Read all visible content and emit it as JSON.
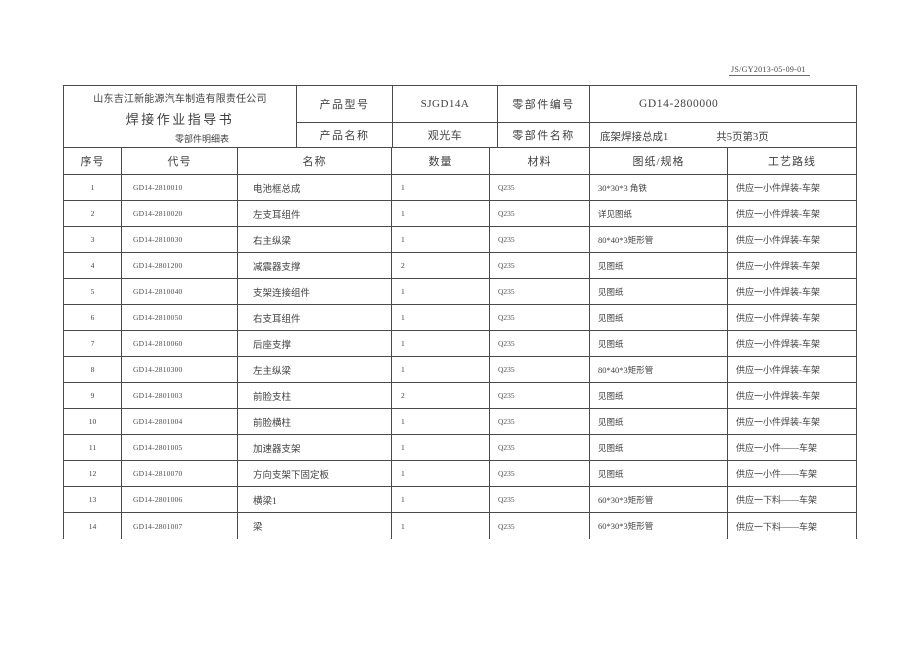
{
  "colors": {
    "page_bg": "#ffffff",
    "ink": "#3f3f3f",
    "border": "#4a4a4a"
  },
  "stamp": "JS/GY2013-05-09-01",
  "header": {
    "company": "山东吉江新能源汽车制造有限责任公司",
    "doc_title": "焊接作业指导书",
    "subtitle": "零部件明细表",
    "product_model_label": "产品型号",
    "product_model": "SJGD14A",
    "product_name_label": "产品名称",
    "product_name": "观光车",
    "part_number_label": "零部件编号",
    "part_number": "GD14-2800000",
    "part_name_label": "零部件名称",
    "part_name": "底架焊接总成1",
    "page_info": "共5页第3页"
  },
  "table": {
    "columns": [
      "序号",
      "代号",
      "名称",
      "数量",
      "材料",
      "图纸/规格",
      "工艺路线"
    ],
    "rows": [
      {
        "seq": "1",
        "code": "GD14-2810010",
        "name": "电池框总成",
        "qty": "1",
        "material": "Q235",
        "spec": "30*30*3 角铁",
        "route": "供应一小件焊装-车架"
      },
      {
        "seq": "2",
        "code": "GD14-2810020",
        "name": "左支耳组件",
        "qty": "1",
        "material": "Q235",
        "spec": "详见图纸",
        "route": "供应一小件焊装-车架"
      },
      {
        "seq": "3",
        "code": "GD14-2810030",
        "name": "右主纵梁",
        "qty": "1",
        "material": "Q235",
        "spec": "80*40*3矩形管",
        "route": "供应一小件焊装-车架"
      },
      {
        "seq": "4",
        "code": "GD14-2801200",
        "name": "减震器支撑",
        "qty": "2",
        "material": "Q235",
        "spec": "见图纸",
        "route": "供应一小件焊装-车架"
      },
      {
        "seq": "5",
        "code": "GD14-2810040",
        "name": "支架连接组件",
        "qty": "1",
        "material": "Q235",
        "spec": "见图纸",
        "route": "供应一小件焊装-车架"
      },
      {
        "seq": "6",
        "code": "GD14-2810050",
        "name": "右支耳组件",
        "qty": "1",
        "material": "Q235",
        "spec": "见图纸",
        "route": "供应一小件焊装-车架"
      },
      {
        "seq": "7",
        "code": "GD14-2810060",
        "name": "后座支撑",
        "qty": "1",
        "material": "Q235",
        "spec": "见图纸",
        "route": "供应一小件焊装-车架"
      },
      {
        "seq": "8",
        "code": "GD14-2810300",
        "name": "左主纵梁",
        "qty": "1",
        "material": "Q235",
        "spec": "80*40*3矩形管",
        "route": "供应一小件焊装-车架"
      },
      {
        "seq": "9",
        "code": "GD14-2801003",
        "name": "前脸支柱",
        "qty": "2",
        "material": "Q235",
        "spec": "见图纸",
        "route": "供应一小件焊装-车架"
      },
      {
        "seq": "10",
        "code": "GD14-2801004",
        "name": "前脸横柱",
        "qty": "1",
        "material": "Q235",
        "spec": "见图纸",
        "route": "供应一小件焊装-车架"
      },
      {
        "seq": "11",
        "code": "GD14-2801005",
        "name": "加速器支架",
        "qty": "1",
        "material": "Q235",
        "spec": "见图纸",
        "route": "供应一小件——车架"
      },
      {
        "seq": "12",
        "code": "GD14-2810070",
        "name": "方向支架下固定板",
        "qty": "1",
        "material": "Q235",
        "spec": "见图纸",
        "route": "供应一小件——车架"
      },
      {
        "seq": "13",
        "code": "GD14-2801006",
        "name": "横梁1",
        "qty": "1",
        "material": "Q235",
        "spec": "60*30*3矩形管",
        "route": "供应一下料——车架"
      },
      {
        "seq": "14",
        "code": "GD14-2801007",
        "name": "梁",
        "qty": "1",
        "material": "Q235",
        "spec": "60*30*3矩形管",
        "route": "供应一下料——车架"
      }
    ]
  }
}
